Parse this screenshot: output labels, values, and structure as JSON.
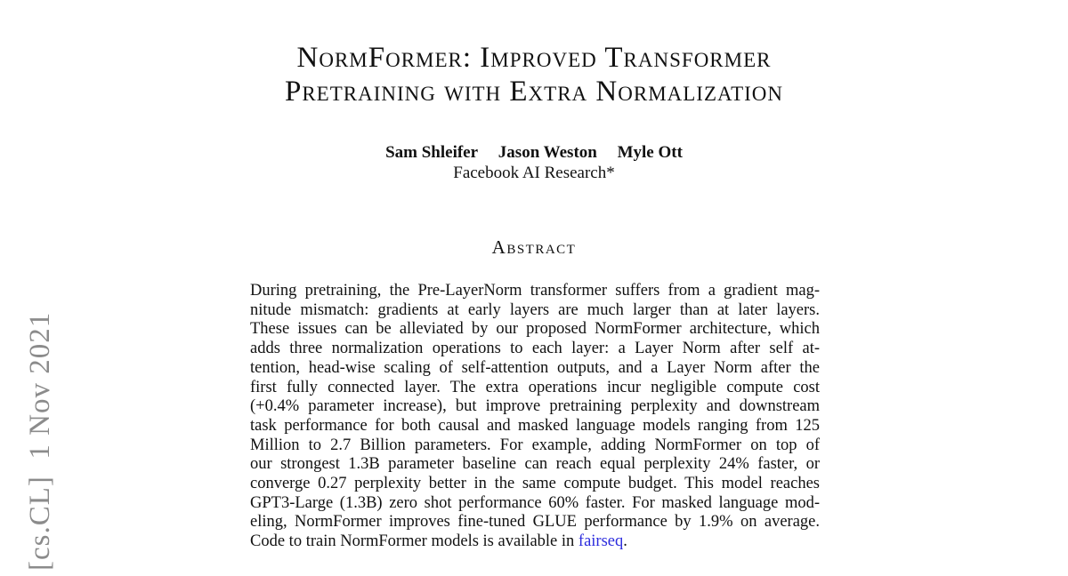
{
  "page": {
    "background": "#ffffff",
    "text_color": "#111111"
  },
  "stamp": {
    "text": "[cs.CL]  1 Nov 2021",
    "color": "#8b8b8b"
  },
  "header": {
    "title_line1": "NormFormer: Improved Transformer",
    "title_line2": "Pretraining with Extra Normalization",
    "authors": [
      "Sam Shleifer",
      "Jason Weston",
      "Myle Ott"
    ],
    "affiliation": "Facebook AI Research*"
  },
  "abstract": {
    "heading": "Abstract",
    "lines": [
      "During pretraining, the Pre-LayerNorm transformer suffers from a gradient mag-",
      "nitude mismatch: gradients at early layers are much larger than at later layers.",
      "These issues can be alleviated by our proposed NormFormer architecture, which",
      "adds three normalization operations to each layer: a Layer Norm after self at-",
      "tention, head-wise scaling of self-attention outputs, and a Layer Norm after the",
      "first fully connected layer. The extra operations incur negligible compute cost",
      "(+0.4% parameter increase), but improve pretraining perplexity and downstream",
      "task performance for both causal and masked language models ranging from 125",
      "Million to 2.7 Billion parameters. For example, adding NormFormer on top of",
      "our strongest 1.3B parameter baseline can reach equal perplexity 24% faster, or",
      "converge 0.27 perplexity better in the same compute budget. This model reaches",
      "GPT3-Large (1.3B) zero shot performance 60% faster. For masked language mod-",
      "eling, NormFormer improves fine-tuned GLUE performance by 1.9% on average."
    ],
    "last_line_prefix": "Code to train NormFormer models is available in ",
    "link_text": "fairseq",
    "last_line_suffix": ".",
    "link_color": "#2b2bdd"
  }
}
